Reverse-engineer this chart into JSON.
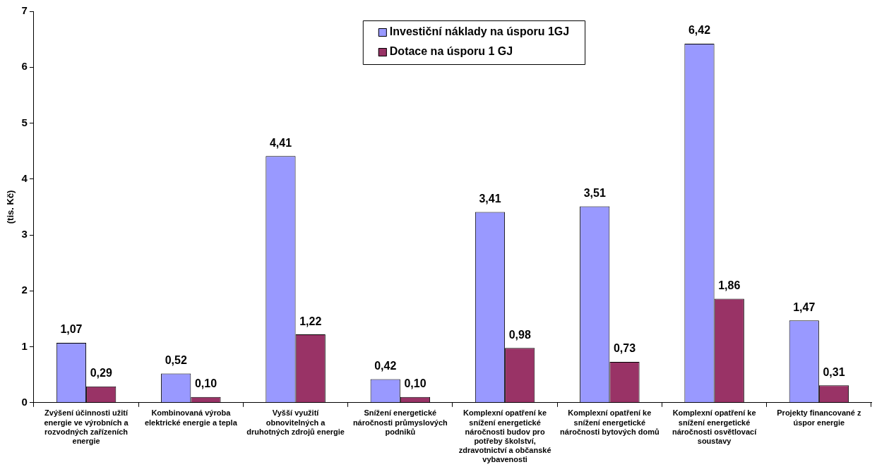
{
  "chart_data": {
    "type": "bar",
    "ylabel": "(tis. Kč)",
    "categories": [
      "Zvýšení účinnosti užití energie ve výrobních a rozvodných zařízeních energie",
      "Kombinovaná výroba elektrické energie a tepla",
      "Vyšší využití obnovitelných a druhotných zdrojů energie",
      "Snížení energetické náročnosti průmyslových podniků",
      "Komplexní opatření ke snížení energetické náročnosti budov pro potřeby školství, zdravotnictví a občanské vybavenosti",
      "Komplexní opatření ke snížení energetické náročnosti bytových domů",
      "Komplexní opatření ke snížení energetické náročnosti osvětlovací soustavy",
      "Projekty financované z úspor energie"
    ],
    "series": [
      {
        "name": "Investiční náklady na úsporu 1GJ",
        "color": "#9999ff",
        "values": [
          1.07,
          0.52,
          4.41,
          0.42,
          3.41,
          3.51,
          6.42,
          1.47
        ],
        "value_labels": [
          "1,07",
          "0,52",
          "4,41",
          "0,42",
          "3,41",
          "3,51",
          "6,42",
          "1,47"
        ]
      },
      {
        "name": "Dotace na úsporu 1 GJ",
        "color": "#993366",
        "values": [
          0.29,
          0.1,
          1.22,
          0.1,
          0.98,
          0.73,
          1.86,
          0.31
        ],
        "value_labels": [
          "0,29",
          "0,10",
          "1,22",
          "0,10",
          "0,98",
          "0,73",
          "1,86",
          "0,31"
        ]
      }
    ],
    "ylim": [
      0,
      7
    ],
    "yticks": [
      0,
      1,
      2,
      3,
      4,
      5,
      6,
      7
    ],
    "grid": false,
    "legend": "top"
  }
}
